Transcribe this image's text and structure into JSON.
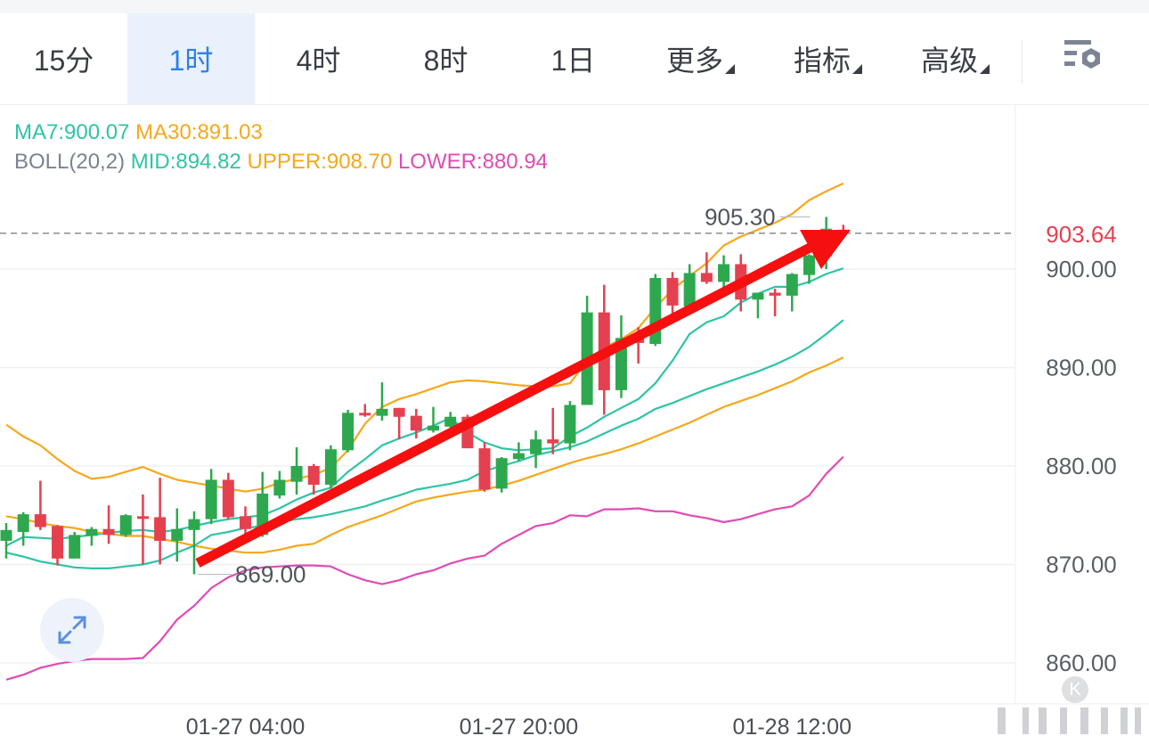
{
  "tabs": [
    {
      "label": "15分",
      "active": false
    },
    {
      "label": "1时",
      "active": true
    },
    {
      "label": "4时",
      "active": false
    },
    {
      "label": "8时",
      "active": false
    },
    {
      "label": "1日",
      "active": false
    },
    {
      "label": "更多",
      "active": false,
      "dropdown": true
    },
    {
      "label": "指标",
      "active": false,
      "dropdown": true
    },
    {
      "label": "高级",
      "active": false,
      "dropdown": true
    }
  ],
  "settings_icon": "chart-settings-icon",
  "legend": {
    "ma7": "MA7:900.07",
    "ma30": "MA30:891.03",
    "boll": "BOLL(20,2)",
    "mid": "MID:894.82",
    "upper": "UPPER:908.70",
    "lower": "LOWER:880.94"
  },
  "colors": {
    "up": "#2ea84f",
    "down": "#e5404f",
    "ma7": "#2ec4a6",
    "ma30": "#f5a81c",
    "mid": "#2ec4a6",
    "upper": "#f5a81c",
    "lower": "#e04bb5",
    "last_price": "#e5404f",
    "annotation_arrow": "#f50f0f",
    "active_tab": "#2f7fe8"
  },
  "chart_data": {
    "type": "candlestick",
    "interval": "1时",
    "ylim": [
      855,
      912
    ],
    "y_ticks": [
      "900.00",
      "890.00",
      "880.00",
      "870.00",
      "860.00"
    ],
    "x_ticks": [
      {
        "index": 14,
        "label": "01-27 04:00"
      },
      {
        "index": 30,
        "label": "01-27 20:00"
      },
      {
        "index": 46,
        "label": "01-28 12:00"
      }
    ],
    "last_price": "903.64",
    "high_label": {
      "index": 48,
      "value": "905.30"
    },
    "low_label": {
      "index": 11,
      "value": "869.00"
    },
    "grid": true,
    "candles": [
      [
        872.4,
        873.5,
        874.2,
        870.6
      ],
      [
        873.3,
        875.1,
        875.3,
        871.9
      ],
      [
        875.1,
        873.8,
        878.5,
        873.5
      ],
      [
        873.9,
        870.6,
        874.0,
        869.9
      ],
      [
        870.6,
        873.0,
        873.3,
        870.6
      ],
      [
        872.9,
        873.6,
        873.8,
        871.9
      ],
      [
        873.6,
        873.0,
        876.0,
        872.1
      ],
      [
        873.0,
        875.0,
        875.1,
        872.8
      ],
      [
        874.9,
        874.7,
        877.1,
        870.0
      ],
      [
        874.8,
        872.4,
        878.8,
        870.0
      ],
      [
        872.4,
        873.6,
        875.7,
        870.3
      ],
      [
        873.5,
        874.6,
        875.4,
        869.0
      ],
      [
        874.6,
        878.6,
        879.7,
        874.1
      ],
      [
        878.6,
        874.8,
        879.3,
        874.6
      ],
      [
        874.9,
        873.6,
        875.9,
        873.0
      ],
      [
        873.0,
        877.2,
        879.4,
        872.8
      ],
      [
        877.0,
        878.6,
        879.5,
        876.7
      ],
      [
        878.4,
        880.0,
        881.9,
        877.1
      ],
      [
        880.0,
        878.1,
        880.2,
        877.1
      ],
      [
        878.1,
        881.7,
        882.1,
        877.7
      ],
      [
        881.6,
        885.4,
        885.7,
        881.4
      ],
      [
        885.4,
        885.2,
        886.3,
        885.0
      ],
      [
        885.1,
        885.8,
        888.5,
        884.6
      ],
      [
        885.9,
        885.0,
        885.9,
        882.7
      ],
      [
        885.1,
        883.6,
        885.8,
        882.8
      ],
      [
        883.6,
        884.1,
        886.0,
        883.4
      ],
      [
        884.0,
        885.0,
        885.5,
        883.9
      ],
      [
        885.0,
        881.8,
        885.2,
        881.8
      ],
      [
        881.8,
        877.6,
        882.4,
        877.4
      ],
      [
        877.7,
        880.8,
        880.9,
        877.3
      ],
      [
        880.7,
        881.3,
        882.4,
        880.5
      ],
      [
        881.2,
        882.7,
        883.6,
        879.8
      ],
      [
        882.7,
        882.3,
        885.9,
        881.2
      ],
      [
        882.3,
        886.2,
        886.6,
        881.6
      ],
      [
        886.2,
        895.6,
        897.3,
        886.2
      ],
      [
        895.6,
        887.7,
        898.4,
        885.2
      ],
      [
        887.7,
        893.0,
        895.3,
        886.9
      ],
      [
        893.2,
        892.5,
        894.1,
        890.4
      ],
      [
        892.4,
        899.1,
        899.5,
        892.2
      ],
      [
        899.1,
        896.3,
        899.7,
        895.5
      ],
      [
        896.2,
        899.6,
        900.5,
        895.8
      ],
      [
        899.6,
        898.7,
        901.7,
        898.5
      ],
      [
        898.7,
        900.5,
        901.4,
        898.1
      ],
      [
        900.5,
        896.9,
        901.5,
        895.7
      ],
      [
        896.9,
        897.6,
        897.6,
        895.0
      ],
      [
        897.6,
        897.3,
        898.0,
        895.2
      ],
      [
        897.3,
        899.5,
        899.6,
        895.7
      ],
      [
        899.4,
        901.4,
        901.5,
        898.5
      ],
      [
        901.3,
        904.1,
        905.3,
        900.0
      ],
      [
        904.0,
        903.64,
        904.5,
        903.1
      ]
    ],
    "series": [
      {
        "name": "MA7",
        "values": [
          871.9,
          872.8,
          872.7,
          872.6,
          872.8,
          873.0,
          873.2,
          873.4,
          873.5,
          873.3,
          873.5,
          873.9,
          874.3,
          874.6,
          874.8,
          875.0,
          875.7,
          876.6,
          877.3,
          877.8,
          879.4,
          880.7,
          882.1,
          882.8,
          883.4,
          884.1,
          884.9,
          883.4,
          882.4,
          881.8,
          881.6,
          881.7,
          881.8,
          883.0,
          883.9,
          885.0,
          885.9,
          886.8,
          888.4,
          890.7,
          893.4,
          894.6,
          895.2,
          896.6,
          897.5,
          898.2,
          898.2,
          898.7,
          899.5,
          900.07
        ]
      },
      {
        "name": "MA30",
        "values": [
          874.9,
          874.6,
          874.2,
          873.9,
          873.7,
          873.3,
          873.1,
          872.9,
          872.9,
          872.6,
          872.3,
          871.9,
          871.6,
          871.4,
          871.2,
          871.2,
          871.5,
          871.9,
          872.1,
          873.0,
          873.8,
          874.4,
          875.0,
          875.7,
          876.4,
          876.8,
          877.1,
          877.4,
          877.6,
          878.0,
          878.5,
          879.1,
          879.7,
          880.3,
          880.8,
          881.2,
          881.7,
          882.3,
          883.0,
          883.7,
          884.4,
          885.2,
          886.0,
          886.6,
          887.2,
          887.9,
          888.6,
          889.5,
          890.2,
          891.03
        ]
      },
      {
        "name": "MID",
        "values": [
          871.2,
          870.8,
          870.3,
          870.0,
          869.7,
          869.6,
          869.6,
          869.8,
          870.0,
          870.4,
          871.2,
          871.9,
          873.0,
          873.3,
          873.7,
          873.9,
          874.3,
          874.6,
          874.8,
          875.1,
          875.5,
          875.9,
          876.5,
          877.0,
          877.6,
          877.9,
          878.2,
          878.6,
          879.5,
          880.0,
          880.5,
          881.1,
          881.5,
          881.9,
          882.5,
          883.3,
          884.1,
          884.8,
          885.8,
          886.4,
          887.1,
          887.8,
          888.4,
          889.0,
          889.6,
          890.3,
          891.1,
          892.1,
          893.4,
          894.82
        ]
      },
      {
        "name": "UPPER",
        "values": [
          884.2,
          883.0,
          882.1,
          880.7,
          879.5,
          878.7,
          878.9,
          879.4,
          879.9,
          879.2,
          878.6,
          878.3,
          878.0,
          877.7,
          877.4,
          877.7,
          878.3,
          878.7,
          879.1,
          879.8,
          881.6,
          884.3,
          886.0,
          886.8,
          887.3,
          887.9,
          888.5,
          888.7,
          888.6,
          888.4,
          888.2,
          888.1,
          888.1,
          888.4,
          890.7,
          892.0,
          892.9,
          894.0,
          896.1,
          897.9,
          899.3,
          900.6,
          902.4,
          903.3,
          904.0,
          904.7,
          905.6,
          907.0,
          907.9,
          908.7
        ]
      },
      {
        "name": "LOWER",
        "values": [
          858.3,
          858.8,
          859.5,
          859.9,
          860.2,
          860.4,
          860.4,
          860.4,
          860.5,
          862.2,
          864.4,
          865.8,
          867.6,
          868.7,
          869.4,
          869.7,
          869.8,
          869.9,
          869.9,
          869.8,
          869.0,
          868.4,
          868.0,
          868.4,
          869.0,
          869.4,
          870.1,
          870.6,
          870.9,
          872.1,
          873.0,
          873.9,
          874.2,
          875.0,
          874.9,
          875.6,
          875.6,
          875.7,
          875.4,
          875.4,
          875.0,
          874.7,
          874.3,
          874.6,
          875.1,
          875.6,
          875.9,
          877.0,
          879.2,
          880.94
        ]
      }
    ]
  },
  "expand_icon": "expand-arrows-icon",
  "watermark_letter": "K"
}
